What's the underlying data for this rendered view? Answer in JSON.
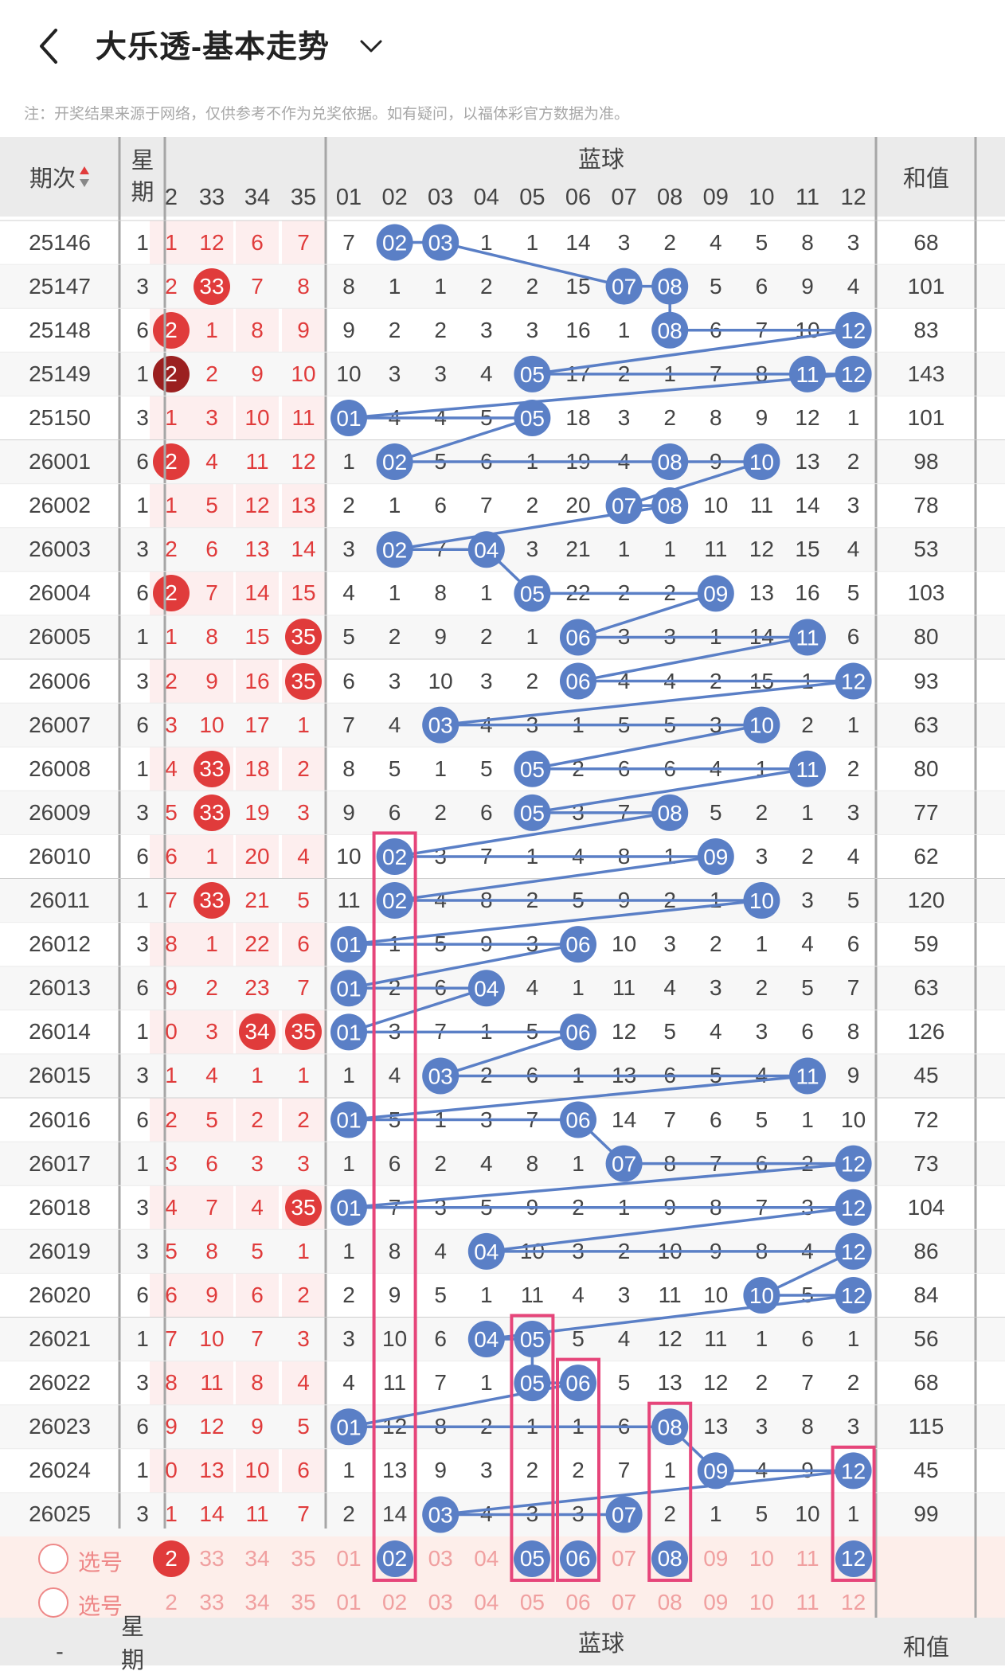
{
  "header": {
    "title": "大乐透-基本走势"
  },
  "notice": "注：开奖结果来源于网络，仅供参考不作为兑奖依据。如有疑问，以福体彩官方数据为准。",
  "columns": {
    "period": "期次",
    "weekday": "星期",
    "blue_title": "蓝球",
    "sum": "和值",
    "red_tail": [
      "2",
      "33",
      "34",
      "35"
    ],
    "blue": [
      "01",
      "02",
      "03",
      "04",
      "05",
      "06",
      "07",
      "08",
      "09",
      "10",
      "11",
      "12"
    ]
  },
  "rows": [
    {
      "period": "25146",
      "wd": "1",
      "r": [
        "1",
        "12",
        "6",
        "7"
      ],
      "rhit": [
        0,
        0,
        0,
        0
      ],
      "b": [
        "7",
        "02",
        "03",
        "1",
        "1",
        "14",
        "3",
        "2",
        "4",
        "5",
        "8",
        "3"
      ],
      "sum": "68"
    },
    {
      "period": "25147",
      "wd": "3",
      "r": [
        "2",
        "33",
        "7",
        "8"
      ],
      "rhit": [
        0,
        1,
        0,
        0
      ],
      "b": [
        "8",
        "1",
        "1",
        "2",
        "2",
        "15",
        "07",
        "08",
        "5",
        "6",
        "9",
        "4"
      ],
      "sum": "101"
    },
    {
      "period": "25148",
      "wd": "6",
      "r": [
        "2",
        "1",
        "8",
        "9"
      ],
      "rhit": [
        1,
        0,
        0,
        0
      ],
      "b": [
        "9",
        "2",
        "2",
        "3",
        "3",
        "16",
        "1",
        "08",
        "6",
        "7",
        "10",
        "12"
      ],
      "sum": "83"
    },
    {
      "period": "25149",
      "wd": "1",
      "r": [
        "2",
        "2",
        "9",
        "10"
      ],
      "rhit": [
        2,
        0,
        0,
        0
      ],
      "b": [
        "10",
        "3",
        "3",
        "4",
        "05",
        "17",
        "2",
        "1",
        "7",
        "8",
        "11",
        "12"
      ],
      "sum": "143"
    },
    {
      "period": "25150",
      "wd": "3",
      "r": [
        "1",
        "3",
        "10",
        "11"
      ],
      "rhit": [
        0,
        0,
        0,
        0
      ],
      "b": [
        "01",
        "4",
        "4",
        "5",
        "05",
        "18",
        "3",
        "2",
        "8",
        "9",
        "12",
        "1"
      ],
      "sum": "101"
    },
    {
      "period": "26001",
      "wd": "6",
      "r": [
        "2",
        "4",
        "11",
        "12"
      ],
      "rhit": [
        1,
        0,
        0,
        0
      ],
      "b": [
        "1",
        "02",
        "5",
        "6",
        "1",
        "19",
        "4",
        "08",
        "9",
        "10",
        "13",
        "2"
      ],
      "sum": "98"
    },
    {
      "period": "26002",
      "wd": "1",
      "r": [
        "1",
        "5",
        "12",
        "13"
      ],
      "rhit": [
        0,
        0,
        0,
        0
      ],
      "b": [
        "2",
        "1",
        "6",
        "7",
        "2",
        "20",
        "07",
        "08",
        "10",
        "11",
        "14",
        "3"
      ],
      "sum": "78"
    },
    {
      "period": "26003",
      "wd": "3",
      "r": [
        "2",
        "6",
        "13",
        "14"
      ],
      "rhit": [
        0,
        0,
        0,
        0
      ],
      "b": [
        "3",
        "02",
        "7",
        "04",
        "3",
        "21",
        "1",
        "1",
        "11",
        "12",
        "15",
        "4"
      ],
      "sum": "53"
    },
    {
      "period": "26004",
      "wd": "6",
      "r": [
        "2",
        "7",
        "14",
        "15"
      ],
      "rhit": [
        1,
        0,
        0,
        0
      ],
      "b": [
        "4",
        "1",
        "8",
        "1",
        "05",
        "22",
        "2",
        "2",
        "09",
        "13",
        "16",
        "5"
      ],
      "sum": "103"
    },
    {
      "period": "26005",
      "wd": "1",
      "r": [
        "1",
        "8",
        "15",
        "35"
      ],
      "rhit": [
        0,
        0,
        0,
        1
      ],
      "b": [
        "5",
        "2",
        "9",
        "2",
        "1",
        "06",
        "3",
        "3",
        "1",
        "14",
        "11",
        "6"
      ],
      "sum": "80"
    },
    {
      "period": "26006",
      "wd": "3",
      "r": [
        "2",
        "9",
        "16",
        "35"
      ],
      "rhit": [
        0,
        0,
        0,
        1
      ],
      "b": [
        "6",
        "3",
        "10",
        "3",
        "2",
        "06",
        "4",
        "4",
        "2",
        "15",
        "1",
        "12"
      ],
      "sum": "93"
    },
    {
      "period": "26007",
      "wd": "6",
      "r": [
        "3",
        "10",
        "17",
        "1"
      ],
      "rhit": [
        0,
        0,
        0,
        0
      ],
      "b": [
        "7",
        "4",
        "03",
        "4",
        "3",
        "1",
        "5",
        "5",
        "3",
        "10",
        "2",
        "1"
      ],
      "sum": "63"
    },
    {
      "period": "26008",
      "wd": "1",
      "r": [
        "4",
        "33",
        "18",
        "2"
      ],
      "rhit": [
        0,
        1,
        0,
        0
      ],
      "b": [
        "8",
        "5",
        "1",
        "5",
        "05",
        "2",
        "6",
        "6",
        "4",
        "1",
        "11",
        "2"
      ],
      "sum": "80"
    },
    {
      "period": "26009",
      "wd": "3",
      "r": [
        "5",
        "33",
        "19",
        "3"
      ],
      "rhit": [
        0,
        1,
        0,
        0
      ],
      "b": [
        "9",
        "6",
        "2",
        "6",
        "05",
        "3",
        "7",
        "08",
        "5",
        "2",
        "1",
        "3"
      ],
      "sum": "77"
    },
    {
      "period": "26010",
      "wd": "6",
      "r": [
        "6",
        "1",
        "20",
        "4"
      ],
      "rhit": [
        0,
        0,
        0,
        0
      ],
      "b": [
        "10",
        "02",
        "3",
        "7",
        "1",
        "4",
        "8",
        "1",
        "09",
        "3",
        "2",
        "4"
      ],
      "sum": "62"
    },
    {
      "period": "26011",
      "wd": "1",
      "r": [
        "7",
        "33",
        "21",
        "5"
      ],
      "rhit": [
        0,
        1,
        0,
        0
      ],
      "b": [
        "11",
        "02",
        "4",
        "8",
        "2",
        "5",
        "9",
        "2",
        "1",
        "10",
        "3",
        "5"
      ],
      "sum": "120"
    },
    {
      "period": "26012",
      "wd": "3",
      "r": [
        "8",
        "1",
        "22",
        "6"
      ],
      "rhit": [
        0,
        0,
        0,
        0
      ],
      "b": [
        "01",
        "1",
        "5",
        "9",
        "3",
        "06",
        "10",
        "3",
        "2",
        "1",
        "4",
        "6"
      ],
      "sum": "59"
    },
    {
      "period": "26013",
      "wd": "6",
      "r": [
        "9",
        "2",
        "23",
        "7"
      ],
      "rhit": [
        0,
        0,
        0,
        0
      ],
      "b": [
        "01",
        "2",
        "6",
        "04",
        "4",
        "1",
        "11",
        "4",
        "3",
        "2",
        "5",
        "7"
      ],
      "sum": "63"
    },
    {
      "period": "26014",
      "wd": "1",
      "r": [
        "0",
        "3",
        "34",
        "35"
      ],
      "rhit": [
        0,
        0,
        1,
        1
      ],
      "b": [
        "01",
        "3",
        "7",
        "1",
        "5",
        "06",
        "12",
        "5",
        "4",
        "3",
        "6",
        "8"
      ],
      "sum": "126"
    },
    {
      "period": "26015",
      "wd": "3",
      "r": [
        "1",
        "4",
        "1",
        "1"
      ],
      "rhit": [
        0,
        0,
        0,
        0
      ],
      "b": [
        "1",
        "4",
        "03",
        "2",
        "6",
        "1",
        "13",
        "6",
        "5",
        "4",
        "11",
        "9"
      ],
      "sum": "45"
    },
    {
      "period": "26016",
      "wd": "6",
      "r": [
        "2",
        "5",
        "2",
        "2"
      ],
      "rhit": [
        0,
        0,
        0,
        0
      ],
      "b": [
        "01",
        "5",
        "1",
        "3",
        "7",
        "06",
        "14",
        "7",
        "6",
        "5",
        "1",
        "10"
      ],
      "sum": "72"
    },
    {
      "period": "26017",
      "wd": "1",
      "r": [
        "3",
        "6",
        "3",
        "3"
      ],
      "rhit": [
        0,
        0,
        0,
        0
      ],
      "b": [
        "1",
        "6",
        "2",
        "4",
        "8",
        "1",
        "07",
        "8",
        "7",
        "6",
        "2",
        "12"
      ],
      "sum": "73"
    },
    {
      "period": "26018",
      "wd": "3",
      "r": [
        "4",
        "7",
        "4",
        "35"
      ],
      "rhit": [
        0,
        0,
        0,
        1
      ],
      "b": [
        "01",
        "7",
        "3",
        "5",
        "9",
        "2",
        "1",
        "9",
        "8",
        "7",
        "3",
        "12"
      ],
      "sum": "104"
    },
    {
      "period": "26019",
      "wd": "3",
      "r": [
        "5",
        "8",
        "5",
        "1"
      ],
      "rhit": [
        0,
        0,
        0,
        0
      ],
      "b": [
        "1",
        "8",
        "4",
        "04",
        "10",
        "3",
        "2",
        "10",
        "9",
        "8",
        "4",
        "12"
      ],
      "sum": "86"
    },
    {
      "period": "26020",
      "wd": "6",
      "r": [
        "6",
        "9",
        "6",
        "2"
      ],
      "rhit": [
        0,
        0,
        0,
        0
      ],
      "b": [
        "2",
        "9",
        "5",
        "1",
        "11",
        "4",
        "3",
        "11",
        "10",
        "10",
        "5",
        "12"
      ],
      "sum": "84"
    },
    {
      "period": "26021",
      "wd": "1",
      "r": [
        "7",
        "10",
        "7",
        "3"
      ],
      "rhit": [
        0,
        0,
        0,
        0
      ],
      "b": [
        "3",
        "10",
        "6",
        "04",
        "05",
        "5",
        "4",
        "12",
        "11",
        "1",
        "6",
        "1"
      ],
      "sum": "56"
    },
    {
      "period": "26022",
      "wd": "3",
      "r": [
        "8",
        "11",
        "8",
        "4"
      ],
      "rhit": [
        0,
        0,
        0,
        0
      ],
      "b": [
        "4",
        "11",
        "7",
        "1",
        "05",
        "06",
        "5",
        "13",
        "12",
        "2",
        "7",
        "2"
      ],
      "sum": "68"
    },
    {
      "period": "26023",
      "wd": "6",
      "r": [
        "9",
        "12",
        "9",
        "5"
      ],
      "rhit": [
        0,
        0,
        0,
        0
      ],
      "b": [
        "01",
        "12",
        "8",
        "2",
        "1",
        "1",
        "6",
        "08",
        "13",
        "3",
        "8",
        "3"
      ],
      "sum": "115"
    },
    {
      "period": "26024",
      "wd": "1",
      "r": [
        "0",
        "13",
        "10",
        "6"
      ],
      "rhit": [
        0,
        0,
        0,
        0
      ],
      "b": [
        "1",
        "13",
        "9",
        "3",
        "2",
        "2",
        "7",
        "1",
        "09",
        "4",
        "9",
        "12"
      ],
      "sum": "45"
    },
    {
      "period": "26025",
      "wd": "3",
      "r": [
        "1",
        "14",
        "11",
        "7"
      ],
      "rhit": [
        0,
        0,
        0,
        0
      ],
      "b": [
        "2",
        "14",
        "03",
        "4",
        "3",
        "3",
        "07",
        "2",
        "1",
        "5",
        "10",
        "1"
      ],
      "sum": "99"
    }
  ],
  "select_rows": [
    {
      "label": "选号",
      "red": [
        "2",
        "33",
        "34",
        "35"
      ],
      "blue": [
        "01",
        "02",
        "03",
        "04",
        "05",
        "06",
        "07",
        "08",
        "09",
        "10",
        "11",
        "12"
      ],
      "picked": [
        "02",
        "05",
        "06",
        "08",
        "12"
      ]
    },
    {
      "label": "选号",
      "red": [
        "2",
        "33",
        "34",
        "35"
      ],
      "blue": [
        "01",
        "02",
        "03",
        "04",
        "05",
        "06",
        "07",
        "08",
        "09",
        "10",
        "11",
        "12"
      ],
      "picked": []
    }
  ],
  "bottom_header": {
    "period": "-",
    "weekday": "星期",
    "blue_title": "蓝球",
    "sum": "和值"
  },
  "colors": {
    "ball": "#5a7fc6",
    "line": "#5a7fc6",
    "red": "#e03b3b",
    "frame": "#e6457a"
  }
}
